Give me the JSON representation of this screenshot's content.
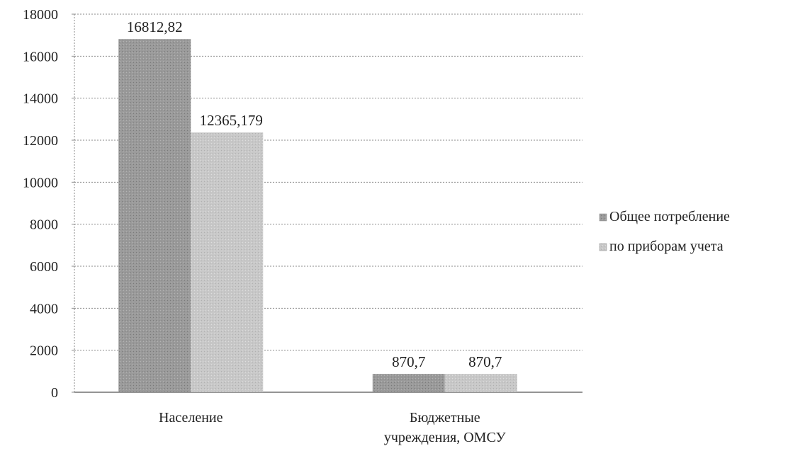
{
  "chart_data": {
    "type": "bar",
    "categories": [
      "Население",
      "Бюджетные учреждения, ОМСУ"
    ],
    "category_lines": [
      [
        "Население"
      ],
      [
        "Бюджетные",
        "учреждения, ОМСУ"
      ]
    ],
    "series": [
      {
        "name": "Общее потребление",
        "values": [
          16812.82,
          870.7
        ],
        "labels": [
          "16812,82",
          "870,7"
        ],
        "color": "#9a9a9a"
      },
      {
        "name": "по приборам учета",
        "values": [
          12365.179,
          870.7
        ],
        "labels": [
          "12365,179",
          "870,7"
        ],
        "color": "#c8c8c8"
      }
    ],
    "ylim": [
      0,
      18000
    ],
    "yticks": [
      0,
      2000,
      4000,
      6000,
      8000,
      10000,
      12000,
      14000,
      16000,
      18000
    ],
    "grid": true,
    "legend_position": "right",
    "title": "",
    "xlabel": "",
    "ylabel": ""
  }
}
